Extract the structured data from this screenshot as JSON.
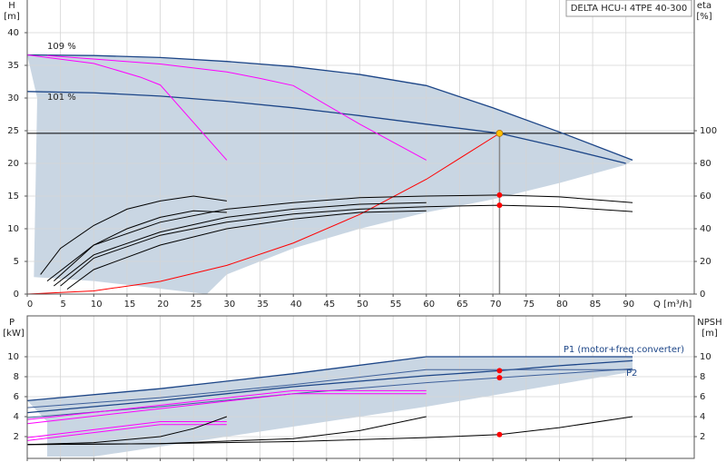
{
  "chart_data": [
    {
      "type": "line",
      "title": "DELTA HCU-I 4TPE 40-300",
      "ylabel": "H",
      "yunit": "[m]",
      "y2label": "eta",
      "y2unit": "[%]",
      "xlabel": "Q [m³/h]",
      "xlim": [
        0,
        100
      ],
      "xticks": [
        0,
        5,
        10,
        15,
        20,
        25,
        30,
        35,
        40,
        45,
        50,
        55,
        60,
        65,
        70,
        75,
        80,
        85,
        90
      ],
      "ylim": [
        0,
        45
      ],
      "yticks": [
        0,
        5,
        10,
        15,
        20,
        25,
        30,
        35,
        40
      ],
      "y2lim": [
        0,
        180
      ],
      "y2ticks": [
        0,
        20,
        40,
        60,
        80,
        100
      ],
      "grid": true,
      "range": {
        "color": "#c9d6e3",
        "x": [
          0,
          10,
          20,
          30,
          40,
          50,
          60,
          70,
          80,
          91,
          90,
          80,
          70,
          60,
          50,
          40,
          30,
          27,
          10,
          1,
          1.5
        ],
        "values": [
          36.6,
          36.5,
          36.2,
          35.6,
          34.8,
          33.6,
          31.9,
          28.5,
          24.8,
          20.5,
          19.8,
          17,
          14.5,
          12.5,
          10,
          7,
          3,
          0,
          2,
          2.6,
          30
        ]
      },
      "series": [
        {
          "name": "109 %",
          "color": "#1c4587",
          "x": [
            0,
            10,
            20,
            30,
            40,
            50,
            60,
            70,
            80,
            91
          ],
          "values": [
            36.6,
            36.5,
            36.2,
            35.6,
            34.8,
            33.6,
            31.9,
            28.5,
            24.8,
            20.5
          ]
        },
        {
          "name": "101 %",
          "color": "#1c4587",
          "x": [
            0,
            10,
            20,
            30,
            40,
            50,
            60,
            71,
            80,
            90
          ],
          "values": [
            31,
            30.8,
            30.3,
            29.5,
            28.5,
            27.3,
            26,
            24.6,
            22.5,
            20
          ]
        },
        {
          "color": "#ff00ff",
          "x": [
            0,
            10,
            17,
            20,
            30
          ],
          "values": [
            36.6,
            35.3,
            33.2,
            32,
            20.5
          ]
        },
        {
          "color": "#ff00ff",
          "x": [
            3,
            20,
            30,
            35,
            40,
            50,
            60
          ],
          "values": [
            36.5,
            35.2,
            34,
            33,
            31.9,
            26,
            20.5
          ]
        },
        {
          "color": "#ff0000",
          "x": [
            0,
            10,
            20,
            30,
            40,
            50,
            60,
            71
          ],
          "values": [
            0,
            0.49,
            1.95,
            4.39,
            7.81,
            12.2,
            17.57,
            24.6
          ]
        },
        {
          "color": "#000000",
          "axis": "y2",
          "x": [
            3,
            10,
            20,
            30,
            40,
            50,
            60,
            71,
            80,
            91
          ],
          "values": [
            8,
            30,
            44,
            52,
            56,
            59,
            60,
            60.6,
            59.5,
            56
          ]
        },
        {
          "color": "#000000",
          "axis": "y2",
          "x": [
            5,
            10,
            20,
            30,
            40,
            50,
            60,
            71,
            80,
            91
          ],
          "values": [
            5,
            22,
            36,
            44,
            49,
            52,
            53.5,
            54.4,
            53.5,
            50.5
          ]
        },
        {
          "color": "#000000",
          "axis": "y2",
          "x": [
            2,
            5,
            10,
            15,
            20,
            25,
            30
          ],
          "values": [
            12,
            28,
            42,
            52,
            57,
            60,
            57
          ]
        },
        {
          "color": "#000000",
          "axis": "y2",
          "x": [
            4,
            10,
            15,
            20,
            25,
            30
          ],
          "values": [
            8,
            30,
            40,
            47,
            51,
            50
          ]
        },
        {
          "color": "#000000",
          "axis": "y2",
          "x": [
            4,
            10,
            20,
            30,
            40,
            50,
            60
          ],
          "values": [
            5,
            24,
            38,
            47,
            52,
            55,
            56
          ]
        },
        {
          "color": "#000000",
          "axis": "y2",
          "x": [
            6,
            10,
            20,
            30,
            40,
            50,
            60
          ],
          "values": [
            3,
            15,
            30,
            40,
            46,
            50,
            51
          ]
        }
      ],
      "duty_point": {
        "x": 71,
        "y": 24.6,
        "color": "#ffc000"
      },
      "points": [
        {
          "x": 71,
          "y": 60.6,
          "axis": "y2",
          "color": "#ff0000"
        },
        {
          "x": 71,
          "y": 54.4,
          "axis": "y2",
          "color": "#ff0000"
        }
      ]
    },
    {
      "type": "line",
      "ylabel": "P",
      "yunit": "[kW]",
      "y2label": "NPSH",
      "y2unit": "[m]",
      "xlim": [
        0,
        100
      ],
      "xticks": [
        0,
        5,
        10,
        15,
        20,
        25,
        30,
        35,
        40,
        45,
        50,
        55,
        60,
        65,
        70,
        75,
        80,
        85,
        90
      ],
      "xtick_labels": false,
      "ylim": [
        0,
        14
      ],
      "yticks": [
        2,
        4,
        6,
        8,
        10
      ],
      "y2lim": [
        0,
        14
      ],
      "y2ticks": [
        2,
        4,
        6,
        8,
        10
      ],
      "grid": true,
      "range": {
        "color": "#c9d6e3",
        "x": [
          0,
          20,
          40,
          60,
          71,
          91,
          91,
          60,
          30,
          10,
          3,
          3
        ],
        "values": [
          5.6,
          6.8,
          8.3,
          10,
          10,
          10,
          8.5,
          5,
          2,
          0,
          0,
          3.5
        ]
      },
      "series": [
        {
          "color": "#1c4587",
          "x": [
            0,
            20,
            40,
            60,
            71,
            91
          ],
          "values": [
            5.6,
            6.8,
            8.3,
            10,
            10,
            10
          ]
        },
        {
          "name": "P1 (motor+freq.converter)",
          "color": "#1c4587",
          "x": [
            0,
            20,
            40,
            60,
            71,
            80,
            91
          ],
          "values": [
            4.4,
            5.6,
            7,
            8.1,
            8.6,
            9.1,
            9.6
          ]
        },
        {
          "color": "#3d5f9a",
          "x": [
            0,
            20,
            40,
            60,
            91
          ],
          "values": [
            4.9,
            5.9,
            7.2,
            8.7,
            8.7
          ]
        },
        {
          "name": "P2",
          "color": "#3d5f9a",
          "x": [
            0,
            20,
            40,
            60,
            71,
            91
          ],
          "values": [
            3.9,
            5,
            6.3,
            7.4,
            7.9,
            8.8
          ]
        },
        {
          "color": "#ff00ff",
          "x": [
            0,
            20,
            30
          ],
          "values": [
            1.6,
            3.2,
            3.2
          ]
        },
        {
          "color": "#ff00ff",
          "x": [
            0,
            20,
            30
          ],
          "values": [
            1.9,
            3.5,
            3.5
          ]
        },
        {
          "color": "#ff00ff",
          "x": [
            0,
            40,
            60
          ],
          "values": [
            3.3,
            6.3,
            6.3
          ]
        },
        {
          "color": "#ff00ff",
          "x": [
            0,
            40,
            60
          ],
          "values": [
            3.7,
            6.6,
            6.6
          ]
        },
        {
          "color": "#000000",
          "axis": "y2",
          "x": [
            0,
            10,
            20,
            25,
            30
          ],
          "values": [
            1.2,
            1.4,
            2,
            2.8,
            4
          ]
        },
        {
          "color": "#000000",
          "axis": "y2",
          "x": [
            0,
            20,
            40,
            50,
            60
          ],
          "values": [
            1.2,
            1.3,
            1.8,
            2.6,
            4
          ]
        },
        {
          "color": "#000000",
          "axis": "y2",
          "x": [
            0,
            20,
            40,
            60,
            71,
            80,
            91
          ],
          "values": [
            1.2,
            1.3,
            1.5,
            1.9,
            2.2,
            2.9,
            4
          ]
        }
      ],
      "points": [
        {
          "x": 71,
          "y": 8.6,
          "color": "#ff0000"
        },
        {
          "x": 71,
          "y": 7.9,
          "color": "#ff0000"
        },
        {
          "x": 71,
          "y": 2.2,
          "axis": "y2",
          "color": "#ff0000"
        }
      ]
    }
  ]
}
